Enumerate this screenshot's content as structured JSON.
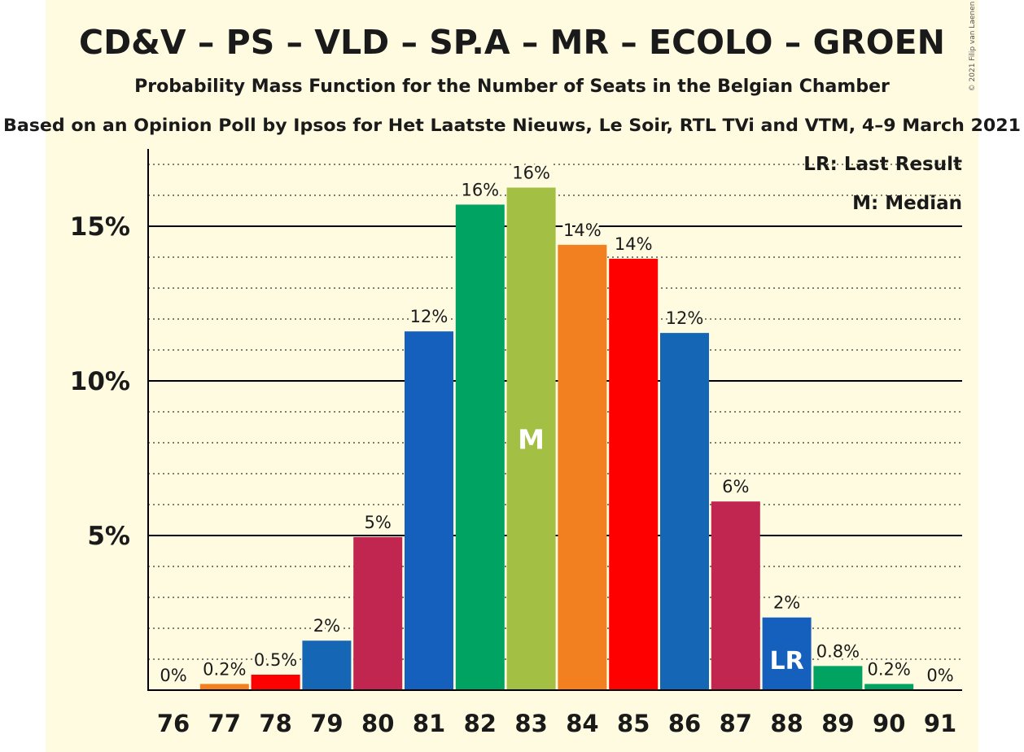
{
  "copyright": "© 2021 Filip van Laenen",
  "colors": {
    "background": "#fefbe0",
    "axis": "#000000",
    "grid": "#000000",
    "inbar_text": "#ffffff"
  },
  "chart_data": {
    "type": "bar",
    "title": "CD&V – PS – VLD – SP.A – MR – ECOLO – GROEN",
    "subtitle": "Probability Mass Function for the Number of Seats in the Belgian Chamber",
    "subtitle2": "Based on an Opinion Poll by Ipsos for Het Laatste Nieuws, Le Soir, RTL TVi and VTM, 4–9 March 2021",
    "xlabel": "",
    "ylabel": "",
    "ylim": [
      0,
      17.5
    ],
    "yticks": [
      5,
      10,
      15
    ],
    "ytick_labels": [
      "5%",
      "10%",
      "15%"
    ],
    "minor_grid_step": 1,
    "legend": [
      "LR: Last Result",
      "M: Median"
    ],
    "legend_position": "top-right",
    "categories": [
      "76",
      "77",
      "78",
      "79",
      "80",
      "81",
      "82",
      "83",
      "84",
      "85",
      "86",
      "87",
      "88",
      "89",
      "90",
      "91"
    ],
    "values": [
      0,
      0.2,
      0.5,
      1.6,
      4.95,
      11.6,
      15.7,
      16.25,
      14.4,
      13.95,
      11.55,
      6.1,
      2.35,
      0.78,
      0.2,
      0
    ],
    "labels": [
      "0%",
      "0.2%",
      "0.5%",
      "2%",
      "5%",
      "12%",
      "16%",
      "16%",
      "14%",
      "14%",
      "12%",
      "6%",
      "2%",
      "0.8%",
      "0.2%",
      "0%"
    ],
    "bar_colors": [
      "#f28020",
      "#f28020",
      "#ff0000",
      "#1567b5",
      "#c0264f",
      "#1560bd",
      "#00a362",
      "#a3bf44",
      "#f28020",
      "#ff0000",
      "#1567b5",
      "#c0264f",
      "#1560bd",
      "#00a362",
      "#00a362",
      "#00a362"
    ],
    "markers": [
      {
        "category": "83",
        "text": "M"
      },
      {
        "category": "88",
        "text": "LR"
      }
    ]
  }
}
